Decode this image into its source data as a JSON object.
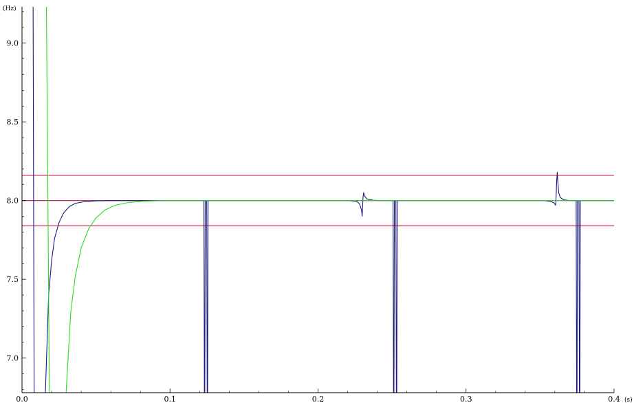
{
  "chart_data": {
    "type": "line",
    "title": "",
    "xlabel": "(s)",
    "ylabel": "(Hz)",
    "xlim": [
      0.0,
      0.4
    ],
    "ylim": [
      6.78,
      9.23
    ],
    "x_ticks": [
      {
        "value": 0.0,
        "label": "0.0"
      },
      {
        "value": 0.1,
        "label": "0.1"
      },
      {
        "value": 0.2,
        "label": "0.2"
      },
      {
        "value": 0.3,
        "label": "0.3"
      },
      {
        "value": 0.4,
        "label": "0.4"
      }
    ],
    "y_ticks": [
      {
        "value": 7.0,
        "label": "7.0"
      },
      {
        "value": 7.5,
        "label": "7.5"
      },
      {
        "value": 8.0,
        "label": "8.0"
      },
      {
        "value": 8.5,
        "label": "8.5"
      },
      {
        "value": 9.0,
        "label": "9.0"
      }
    ],
    "grid": false,
    "reference_lines": [
      {
        "y": 8.16,
        "color": "#cc1133"
      },
      {
        "y": 8.0,
        "color": "#cc1133"
      },
      {
        "y": 7.84,
        "color": "#cc1133"
      }
    ],
    "series": [
      {
        "color": "#1a1a80",
        "points": [
          [
            0.0075,
            9.23
          ],
          [
            0.0082,
            6.78
          ],
          [
            0.0158,
            6.78
          ],
          [
            0.018,
            7.4
          ],
          [
            0.02,
            7.62
          ],
          [
            0.022,
            7.76
          ],
          [
            0.025,
            7.86
          ],
          [
            0.028,
            7.92
          ],
          [
            0.032,
            7.962
          ],
          [
            0.036,
            7.982
          ],
          [
            0.042,
            7.993
          ],
          [
            0.05,
            7.998
          ],
          [
            0.06,
            8.0
          ],
          [
            0.1229,
            8.0
          ],
          [
            0.1232,
            6.78
          ],
          [
            0.1235,
            6.78
          ],
          [
            0.1238,
            8.0
          ],
          [
            0.1248,
            8.0
          ],
          [
            0.1251,
            6.78
          ],
          [
            0.1254,
            6.78
          ],
          [
            0.1257,
            8.0
          ],
          [
            0.22,
            8.0
          ],
          [
            0.226,
            7.995
          ],
          [
            0.228,
            7.98
          ],
          [
            0.2294,
            7.94
          ],
          [
            0.2298,
            7.9
          ],
          [
            0.2302,
            7.98
          ],
          [
            0.2304,
            8.02
          ],
          [
            0.2308,
            8.05
          ],
          [
            0.2314,
            8.03
          ],
          [
            0.233,
            8.01
          ],
          [
            0.237,
            8.002
          ],
          [
            0.242,
            8.0
          ],
          [
            0.2507,
            8.0
          ],
          [
            0.251,
            6.78
          ],
          [
            0.2513,
            6.78
          ],
          [
            0.2516,
            8.0
          ],
          [
            0.2526,
            8.0
          ],
          [
            0.2529,
            6.78
          ],
          [
            0.2532,
            6.78
          ],
          [
            0.2535,
            8.0
          ],
          [
            0.352,
            8.0
          ],
          [
            0.357,
            7.995
          ],
          [
            0.3595,
            7.985
          ],
          [
            0.3606,
            7.97
          ],
          [
            0.3609,
            8.04
          ],
          [
            0.3612,
            8.12
          ],
          [
            0.3616,
            8.18
          ],
          [
            0.362,
            8.12
          ],
          [
            0.3626,
            8.05
          ],
          [
            0.3636,
            8.02
          ],
          [
            0.366,
            8.005
          ],
          [
            0.37,
            8.0
          ],
          [
            0.3744,
            8.0
          ],
          [
            0.3747,
            6.78
          ],
          [
            0.375,
            6.78
          ],
          [
            0.3753,
            8.0
          ],
          [
            0.3763,
            8.0
          ],
          [
            0.3766,
            6.78
          ],
          [
            0.3769,
            6.78
          ],
          [
            0.3772,
            8.0
          ],
          [
            0.4,
            8.0
          ]
        ]
      },
      {
        "color": "#22dd22",
        "points": [
          [
            0.0165,
            9.23
          ],
          [
            0.0185,
            6.78
          ],
          [
            0.0298,
            6.78
          ],
          [
            0.033,
            7.3
          ],
          [
            0.036,
            7.52
          ],
          [
            0.04,
            7.7
          ],
          [
            0.045,
            7.82
          ],
          [
            0.05,
            7.89
          ],
          [
            0.056,
            7.94
          ],
          [
            0.063,
            7.97
          ],
          [
            0.072,
            7.988
          ],
          [
            0.082,
            7.996
          ],
          [
            0.095,
            8.0
          ],
          [
            0.4,
            8.0
          ]
        ]
      }
    ]
  }
}
